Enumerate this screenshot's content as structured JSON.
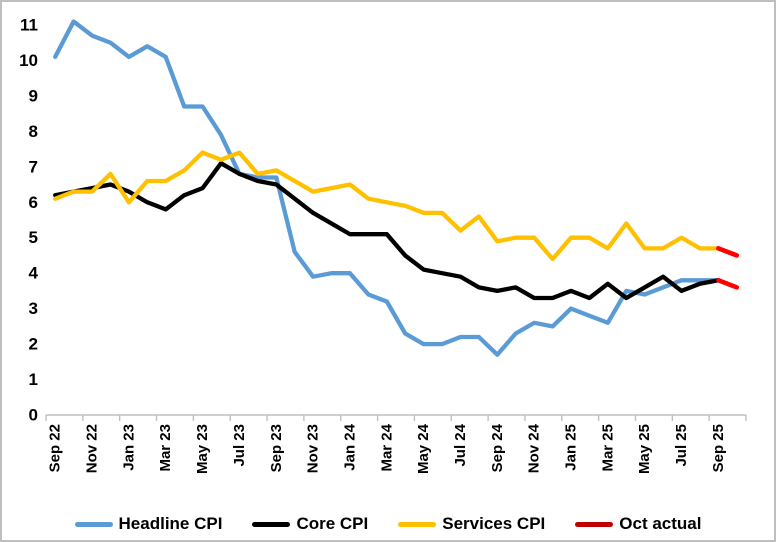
{
  "chart_data": {
    "type": "line",
    "title": "",
    "months": [
      "Sep 22",
      "Oct 22",
      "Nov 22",
      "Dec 22",
      "Jan 23",
      "Feb 23",
      "Mar 23",
      "Apr 23",
      "May 23",
      "Jun 23",
      "Jul 23",
      "Aug 23",
      "Sep 23",
      "Oct 23",
      "Nov 23",
      "Dec 23",
      "Jan 24",
      "Feb 24",
      "Mar 24",
      "Apr 24",
      "May 24",
      "Jun 24",
      "Jul 24",
      "Aug 24",
      "Sep 24",
      "Oct 24",
      "Nov 24",
      "Dec 24",
      "Jan 25",
      "Feb 25",
      "Mar 25",
      "Apr 25",
      "May 25",
      "Jun 25",
      "Jul 25",
      "Aug 25",
      "Sep 25",
      "Oct 25"
    ],
    "x_tick_labels": [
      "Sep 22",
      "Nov 22",
      "Jan 23",
      "Mar 23",
      "May 23",
      "Jul 23",
      "Sep 23",
      "Nov 23",
      "Jan 24",
      "Mar 24",
      "May 24",
      "Jul 24",
      "Sep 24",
      "Nov 24",
      "Jan 25",
      "Mar 25",
      "May 25",
      "Jul 25",
      "Sep 25"
    ],
    "ylim": [
      0,
      11
    ],
    "y_ticks": [
      0,
      1,
      2,
      3,
      4,
      5,
      6,
      7,
      8,
      9,
      10,
      11
    ],
    "grid": false,
    "legend_position": "bottom",
    "series": [
      {
        "name": "Headline CPI",
        "color": "#5B9BD5",
        "values": [
          10.1,
          11.1,
          10.7,
          10.5,
          10.1,
          10.4,
          10.1,
          8.7,
          8.7,
          7.9,
          6.8,
          6.7,
          6.7,
          4.6,
          3.9,
          4.0,
          4.0,
          3.4,
          3.2,
          2.3,
          2.0,
          2.0,
          2.2,
          2.2,
          1.7,
          2.3,
          2.6,
          2.5,
          3.0,
          2.8,
          2.6,
          3.5,
          3.4,
          3.6,
          3.8,
          3.8,
          3.8
        ]
      },
      {
        "name": "Core CPI",
        "color": "#000000",
        "values": [
          6.2,
          6.3,
          6.4,
          6.5,
          6.3,
          6.0,
          5.8,
          6.2,
          6.4,
          7.1,
          6.8,
          6.6,
          6.5,
          6.1,
          5.7,
          5.4,
          5.1,
          5.1,
          5.1,
          4.5,
          4.1,
          4.0,
          3.9,
          3.6,
          3.5,
          3.6,
          3.3,
          3.3,
          3.5,
          3.3,
          3.7,
          3.3,
          3.6,
          3.9,
          3.5,
          3.7,
          3.8
        ]
      },
      {
        "name": "Services CPI",
        "color": "#FFC000",
        "values": [
          6.1,
          6.3,
          6.3,
          6.8,
          6.0,
          6.6,
          6.6,
          6.9,
          7.4,
          7.2,
          7.4,
          6.8,
          6.9,
          6.6,
          6.3,
          6.4,
          6.5,
          6.1,
          6.0,
          5.9,
          5.7,
          5.7,
          5.2,
          5.6,
          4.9,
          5.0,
          5.0,
          4.4,
          5.0,
          5.0,
          4.7,
          5.4,
          4.7,
          4.7,
          5.0,
          4.7,
          4.7
        ]
      }
    ],
    "oct_actual": {
      "name": "Oct actual",
      "line_color": "#FF0000",
      "legend_color": "#C00000",
      "segments": [
        {
          "from_month": "Sep 25",
          "to_month": "Oct 25",
          "from": 4.7,
          "to": 4.5
        },
        {
          "from_month": "Sep 25",
          "to_month": "Oct 25",
          "from": 3.8,
          "to": 3.6
        }
      ]
    },
    "axis_color": "#BFBFBF"
  },
  "legend": {
    "items": [
      {
        "label": "Headline CPI"
      },
      {
        "label": "Core CPI"
      },
      {
        "label": "Services CPI"
      },
      {
        "label": "Oct actual"
      }
    ]
  }
}
